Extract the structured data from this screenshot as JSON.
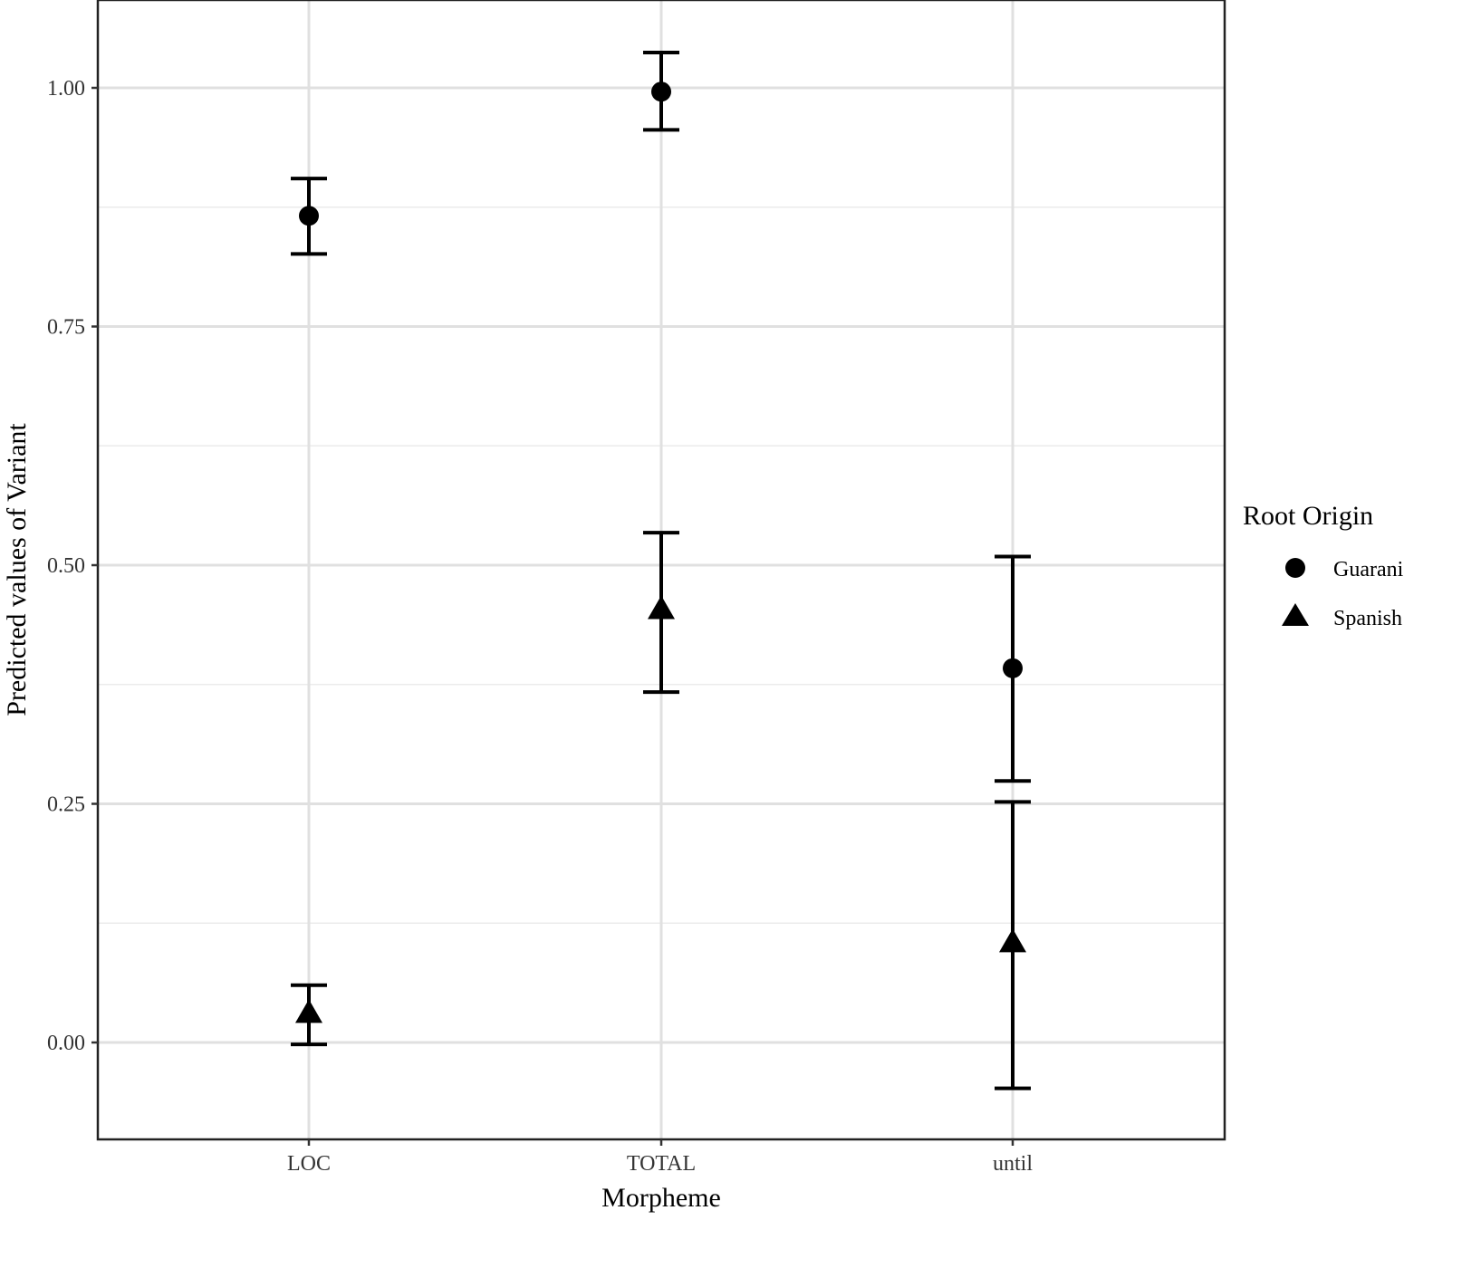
{
  "chart_data": {
    "type": "scatter",
    "subtype": "point-errorbar",
    "title": "",
    "xlabel": "Morpheme",
    "ylabel": "Predicted values of Variant",
    "categories": [
      "LOC",
      "TOTAL",
      "until"
    ],
    "yticks": [
      "0.00",
      "0.25",
      "0.50",
      "0.75",
      "1.00"
    ],
    "ylim": [
      -0.1,
      1.09
    ],
    "grid": true,
    "legend": {
      "title": "Root Origin",
      "position": "right",
      "entries": [
        {
          "label": "Guarani",
          "shape": "circle"
        },
        {
          "label": "Spanish",
          "shape": "triangle"
        }
      ]
    },
    "series": [
      {
        "name": "Guarani",
        "shape": "circle",
        "values": [
          0.866,
          0.996,
          0.392
        ],
        "lower": [
          0.826,
          0.956,
          0.274
        ],
        "upper": [
          0.905,
          1.037,
          0.509
        ]
      },
      {
        "name": "Spanish",
        "shape": "triangle",
        "values": [
          0.031,
          0.454,
          0.105
        ],
        "lower": [
          -0.002,
          0.367,
          -0.048
        ],
        "upper": [
          0.06,
          0.534,
          0.252
        ]
      }
    ]
  }
}
